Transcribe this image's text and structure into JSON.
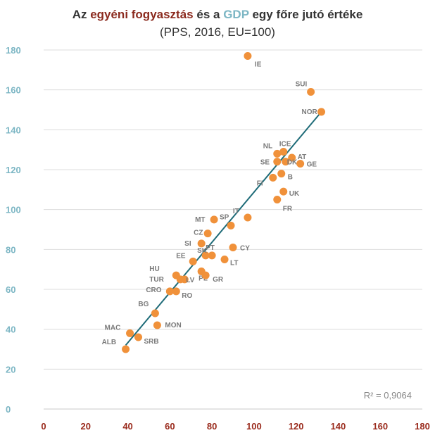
{
  "header": {
    "title_parts": [
      "Az ",
      "egyéni fogyasztás",
      " és a ",
      "GDP",
      " egy főre jutó értéke"
    ],
    "subtitle": "(PPS, 2016, EU=100)"
  },
  "chart_data": {
    "type": "scatter",
    "title": "Az egyéni fogyasztás és a GDP egy főre jutó értéke",
    "subtitle": "(PPS, 2016, EU=100)",
    "xlim": [
      0,
      180
    ],
    "ylim": [
      0,
      180
    ],
    "x_ticks": [
      0,
      20,
      40,
      60,
      80,
      100,
      120,
      140,
      160,
      180
    ],
    "y_ticks": [
      0,
      20,
      40,
      60,
      80,
      100,
      120,
      140,
      160,
      180
    ],
    "grid": true,
    "annotation": "R² = 0,9064",
    "colors": {
      "points": "#f0913a",
      "trendline": "#1e6b78",
      "x_tick_labels": "#9a2b1d",
      "y_tick_labels": "#7cb6c4",
      "point_labels": "#7a7a7a",
      "title_accent_red": "#8b2a1e",
      "title_accent_teal": "#7cb6c4"
    },
    "trendline": {
      "x": [
        39,
        132
      ],
      "y": [
        32,
        149
      ]
    },
    "points": [
      {
        "label": "IE",
        "x": 97,
        "y": 177
      },
      {
        "label": "SUI",
        "x": 127,
        "y": 159
      },
      {
        "label": "NOR",
        "x": 132,
        "y": 149
      },
      {
        "label": "NL",
        "x": 111,
        "y": 128
      },
      {
        "label": "ICE",
        "x": 114,
        "y": 129
      },
      {
        "label": "AT",
        "x": 118,
        "y": 126
      },
      {
        "label": "SE",
        "x": 111,
        "y": 124
      },
      {
        "label": "DK",
        "x": 115,
        "y": 124
      },
      {
        "label": "GE",
        "x": 122,
        "y": 123
      },
      {
        "label": "B",
        "x": 113,
        "y": 118
      },
      {
        "label": "FI",
        "x": 109,
        "y": 116
      },
      {
        "label": "UK",
        "x": 114,
        "y": 109
      },
      {
        "label": "FR",
        "x": 111,
        "y": 105
      },
      {
        "label": "IT",
        "x": 97,
        "y": 96
      },
      {
        "label": "SP",
        "x": 89,
        "y": 92
      },
      {
        "label": "MT",
        "x": 81,
        "y": 95
      },
      {
        "label": "CZ",
        "x": 78,
        "y": 88
      },
      {
        "label": "SI",
        "x": 75,
        "y": 83
      },
      {
        "label": "PT",
        "x": 77,
        "y": 77
      },
      {
        "label": "SK",
        "x": 80,
        "y": 77
      },
      {
        "label": "CY",
        "x": 90,
        "y": 81
      },
      {
        "label": "EE",
        "x": 71,
        "y": 74
      },
      {
        "label": "LT",
        "x": 86,
        "y": 75
      },
      {
        "label": "HU",
        "x": 63,
        "y": 67
      },
      {
        "label": "PL",
        "x": 75,
        "y": 69
      },
      {
        "label": "GR",
        "x": 77,
        "y": 67
      },
      {
        "label": "TUR",
        "x": 65,
        "y": 65
      },
      {
        "label": "LV",
        "x": 67,
        "y": 65
      },
      {
        "label": "CRO",
        "x": 60,
        "y": 59
      },
      {
        "label": "RO",
        "x": 63,
        "y": 59
      },
      {
        "label": "BG",
        "x": 53,
        "y": 48
      },
      {
        "label": "MAC",
        "x": 41,
        "y": 38
      },
      {
        "label": "MON",
        "x": 54,
        "y": 42
      },
      {
        "label": "SRB",
        "x": 45,
        "y": 36
      },
      {
        "label": "ALB",
        "x": 39,
        "y": 30
      }
    ]
  }
}
